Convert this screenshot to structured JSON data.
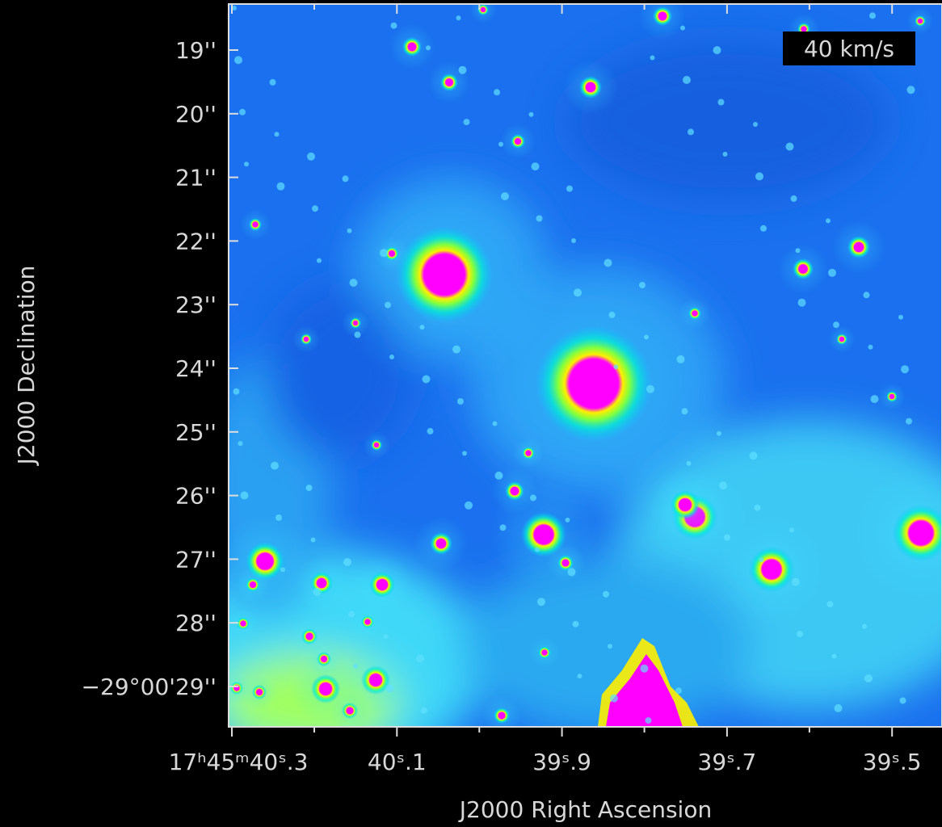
{
  "image": {
    "annotation": "40 km/s",
    "x_axis": {
      "label": "J2000 Right Ascension",
      "ticks": [
        "17ʰ45ᵐ40ˢ.3",
        "40ˢ.1",
        "39ˢ.9",
        "39ˢ.7",
        "39ˢ.5"
      ]
    },
    "y_axis": {
      "label": "J2000 Declination",
      "ticks": [
        "19''",
        "20''",
        "21''",
        "22''",
        "23''",
        "24''",
        "25''",
        "26''",
        "27''",
        "28''",
        "−29°00'29''"
      ]
    }
  }
}
